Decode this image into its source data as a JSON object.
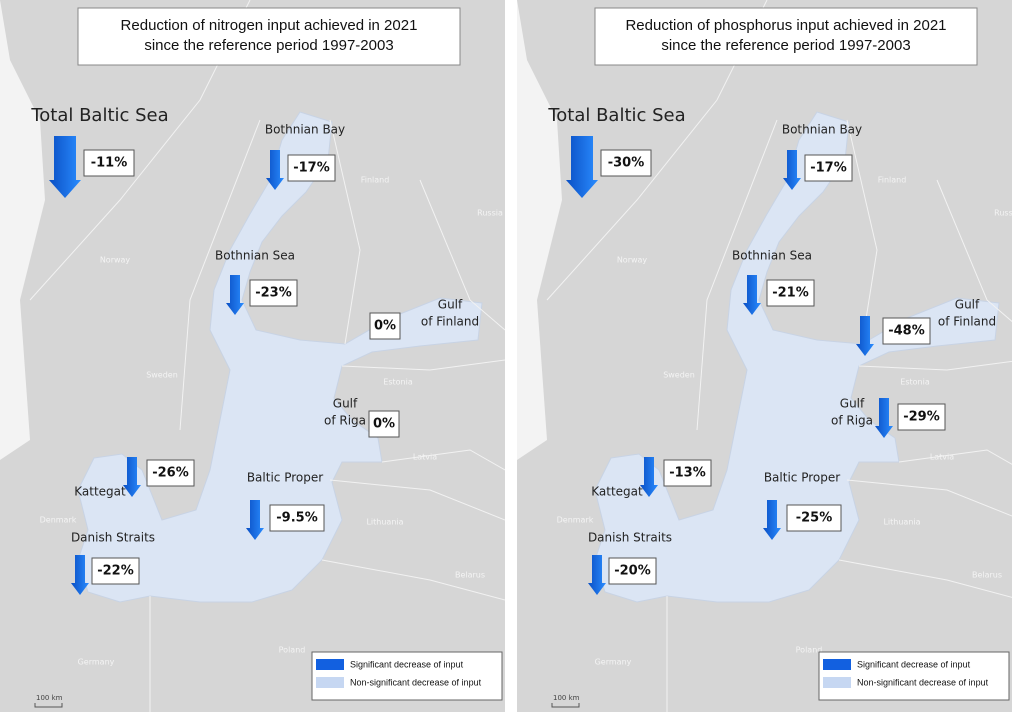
{
  "panels": [
    {
      "title": [
        "Reduction of nitrogen input achieved in 2021",
        "since the reference period 1997-2003"
      ],
      "regions": [
        {
          "name": [
            "Total Baltic Sea"
          ],
          "label": "-11%",
          "significant": true
        },
        {
          "name": [
            "Bothnian Bay"
          ],
          "label": "-17%",
          "significant": true
        },
        {
          "name": [
            "Bothnian Sea"
          ],
          "label": "-23%",
          "significant": true
        },
        {
          "name": [
            "Gulf",
            "of Finland"
          ],
          "label": "0%",
          "significant": false
        },
        {
          "name": [
            "Gulf",
            "of Riga"
          ],
          "label": "0%",
          "significant": false
        },
        {
          "name": [
            "Kattegat"
          ],
          "label": "-26%",
          "significant": true
        },
        {
          "name": [
            "Baltic Proper"
          ],
          "label": "-9.5%",
          "significant": true
        },
        {
          "name": [
            "Danish Straits"
          ],
          "label": "-22%",
          "significant": true
        }
      ]
    },
    {
      "title": [
        "Reduction of phosphorus input achieved in 2021",
        "since the reference period 1997-2003"
      ],
      "regions": [
        {
          "name": [
            "Total Baltic Sea"
          ],
          "label": "-30%",
          "significant": true
        },
        {
          "name": [
            "Bothnian Bay"
          ],
          "label": "-17%",
          "significant": true
        },
        {
          "name": [
            "Bothnian Sea"
          ],
          "label": "-21%",
          "significant": true
        },
        {
          "name": [
            "Gulf",
            "of Finland"
          ],
          "label": "-48%",
          "significant": true
        },
        {
          "name": [
            "Gulf",
            "of Riga"
          ],
          "label": "-29%",
          "significant": true
        },
        {
          "name": [
            "Kattegat"
          ],
          "label": "-13%",
          "significant": true
        },
        {
          "name": [
            "Baltic Proper"
          ],
          "label": "-25%",
          "significant": true
        },
        {
          "name": [
            "Danish Straits"
          ],
          "label": "-20%",
          "significant": true
        }
      ]
    }
  ],
  "countries": [
    "Finland",
    "Russia",
    "Norway",
    "Sweden",
    "Estonia",
    "Latvia",
    "Lithuania",
    "Belarus",
    "Poland",
    "Denmark",
    "Germany"
  ],
  "legend": [
    "Significant decrease of input",
    "Non-significant decrease of input"
  ],
  "scale": "100 km"
}
